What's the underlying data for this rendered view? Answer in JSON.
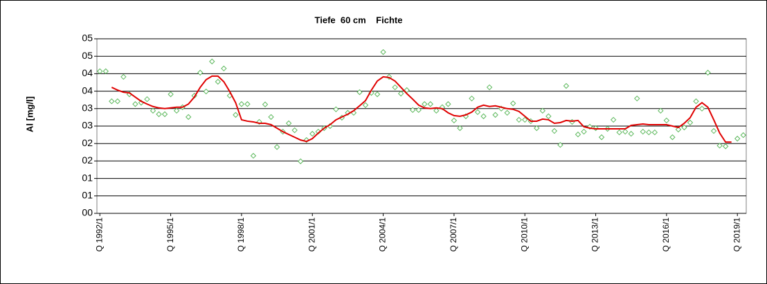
{
  "chart_data": {
    "type": "line",
    "title": "Tiefe  60 cm    Fichte",
    "y_label": "Al [mg/l]",
    "categories": [
      "Q 1992/1",
      null,
      null,
      null,
      null,
      null,
      null,
      null,
      null,
      null,
      null,
      null,
      "Q 1995/1",
      null,
      null,
      null,
      null,
      null,
      null,
      null,
      null,
      null,
      null,
      null,
      "Q 1998/1",
      null,
      null,
      null,
      null,
      null,
      null,
      null,
      null,
      null,
      null,
      null,
      "Q 2001/1",
      null,
      null,
      null,
      null,
      null,
      null,
      null,
      null,
      null,
      null,
      null,
      "Q 2004/1",
      null,
      null,
      null,
      null,
      null,
      null,
      null,
      null,
      null,
      null,
      null,
      "Q 2007/1",
      null,
      null,
      null,
      null,
      null,
      null,
      null,
      null,
      null,
      null,
      null,
      "Q 2010/1",
      null,
      null,
      null,
      null,
      null,
      null,
      null,
      null,
      null,
      null,
      null,
      "Q 2013/1",
      null,
      null,
      null,
      null,
      null,
      null,
      null,
      null,
      null,
      null,
      null,
      "Q 2016/1",
      null,
      null,
      null,
      null,
      null,
      null,
      null,
      null,
      null,
      null,
      null,
      "Q 2019/1",
      null
    ],
    "series": [
      {
        "mode": "markers",
        "marker": "diamond",
        "color": "#5cb85c",
        "values": [
          4.07,
          4.07,
          3.21,
          3.21,
          3.91,
          3.41,
          3.13,
          3.17,
          3.27,
          2.94,
          2.84,
          2.84,
          3.41,
          2.94,
          3.04,
          2.76,
          3.37,
          4.03,
          3.49,
          4.35,
          3.77,
          4.15,
          3.37,
          2.82,
          3.13,
          3.13,
          1.65,
          2.62,
          3.12,
          2.76,
          1.9,
          2.34,
          2.58,
          2.38,
          1.49,
          2.1,
          2.28,
          2.34,
          2.44,
          2.5,
          2.98,
          2.74,
          2.88,
          2.88,
          3.47,
          3.1,
          3.45,
          3.41,
          4.62,
          3.91,
          3.61,
          3.43,
          3.53,
          2.96,
          2.96,
          3.13,
          3.13,
          2.94,
          3.04,
          3.13,
          2.66,
          2.44,
          2.78,
          3.29,
          2.9,
          2.78,
          3.61,
          2.82,
          3.0,
          2.88,
          3.15,
          2.68,
          2.68,
          2.64,
          2.44,
          2.94,
          2.78,
          2.36,
          1.96,
          3.65,
          2.62,
          2.26,
          2.34,
          2.48,
          2.44,
          2.18,
          2.42,
          2.68,
          2.32,
          2.34,
          2.28,
          3.29,
          2.34,
          2.32,
          2.32,
          2.94,
          2.66,
          2.18,
          2.4,
          2.46,
          2.6,
          3.21,
          3.0,
          4.03,
          2.36,
          1.94,
          1.92,
          null,
          2.14,
          2.24
        ]
      },
      {
        "mode": "line",
        "color": "#e00000",
        "values": [
          null,
          null,
          3.61,
          3.53,
          3.47,
          3.45,
          3.33,
          3.21,
          3.13,
          3.06,
          3.02,
          3.0,
          3.02,
          3.04,
          3.04,
          3.13,
          3.33,
          3.61,
          3.83,
          3.93,
          3.93,
          3.77,
          3.49,
          3.17,
          2.68,
          2.64,
          2.62,
          2.58,
          2.58,
          2.54,
          2.44,
          2.34,
          2.26,
          2.18,
          2.1,
          2.06,
          2.14,
          2.3,
          2.44,
          2.54,
          2.68,
          2.76,
          2.84,
          2.94,
          3.08,
          3.23,
          3.53,
          3.79,
          3.91,
          3.89,
          3.79,
          3.61,
          3.43,
          3.27,
          3.1,
          3.02,
          3.0,
          3.02,
          3.0,
          2.88,
          2.8,
          2.78,
          2.82,
          2.9,
          3.04,
          3.1,
          3.06,
          3.08,
          3.04,
          3.0,
          2.98,
          2.92,
          2.78,
          2.64,
          2.64,
          2.7,
          2.68,
          2.58,
          2.6,
          2.66,
          2.64,
          2.66,
          2.48,
          2.44,
          2.42,
          2.42,
          2.42,
          2.42,
          2.42,
          2.42,
          2.52,
          2.54,
          2.56,
          2.54,
          2.54,
          2.54,
          2.54,
          2.5,
          2.46,
          2.58,
          2.74,
          3.04,
          3.17,
          3.04,
          2.68,
          2.3,
          2.04,
          2.04,
          null,
          null
        ]
      }
    ],
    "ylim": [
      0,
      5
    ],
    "yticks": [
      {
        "value": 0,
        "label": "00"
      },
      {
        "value": 0.5,
        "label": "01"
      },
      {
        "value": 1,
        "label": "01"
      },
      {
        "value": 1.5,
        "label": "02"
      },
      {
        "value": 2,
        "label": "02"
      },
      {
        "value": 2.5,
        "label": "03"
      },
      {
        "value": 3,
        "label": "03"
      },
      {
        "value": 3.5,
        "label": "04"
      },
      {
        "value": 4,
        "label": "04"
      },
      {
        "value": 4.5,
        "label": "05"
      },
      {
        "value": 5,
        "label": "05"
      }
    ],
    "grid": true
  }
}
